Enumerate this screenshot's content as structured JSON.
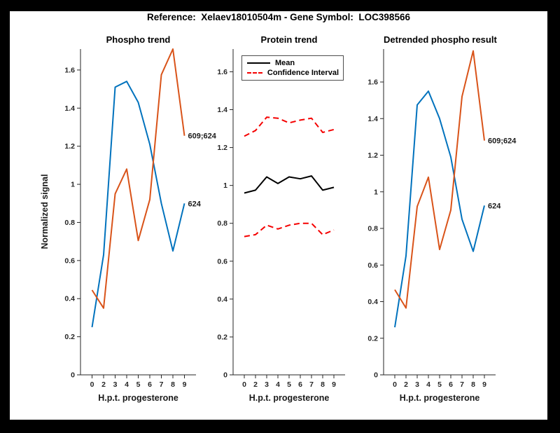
{
  "suptitle": "Reference:  Xelaev18010504m - Gene Symbol:  LOC398566",
  "ylabel": "Normalized signal",
  "colors": {
    "blue": "#0072BD",
    "orange": "#D95319",
    "red": "#F50000",
    "black": "#000000",
    "axis": "#262626",
    "tick_label": "#262626",
    "background": "#FFFFFF",
    "frame": "#000000"
  },
  "legend": {
    "items": [
      {
        "label": "Mean"
      },
      {
        "label": "Confidence Interval"
      }
    ]
  },
  "chart_data": [
    {
      "type": "line",
      "title": "Phospho trend",
      "xlabel": "H.p.t. progesterone",
      "ylabel": "Normalized signal",
      "x_ticklabels": [
        "0",
        "2",
        "3",
        "4",
        "5",
        "6",
        "7",
        "8",
        "9"
      ],
      "yticks": [
        0,
        0.2,
        0.4,
        0.6,
        0.8,
        1,
        1.2,
        1.4,
        1.6
      ],
      "ylim": [
        0,
        1.71
      ],
      "grid": false,
      "series": [
        {
          "name": "phospho-624",
          "label": "624",
          "color": "#0072BD",
          "style": "solid",
          "values": [
            0.25,
            0.63,
            1.51,
            1.54,
            1.43,
            1.21,
            0.9,
            0.65,
            0.9
          ]
        },
        {
          "name": "phospho-609-624",
          "label": "609;624",
          "color": "#D95319",
          "style": "solid",
          "values": [
            0.445,
            0.35,
            0.95,
            1.08,
            0.705,
            0.92,
            1.575,
            1.71,
            1.255
          ]
        }
      ]
    },
    {
      "type": "line",
      "title": "Protein trend",
      "xlabel": "H.p.t. progesterone",
      "x_ticklabels": [
        "0",
        "2",
        "3",
        "4",
        "5",
        "6",
        "7",
        "8",
        "9"
      ],
      "yticks": [
        0,
        0.2,
        0.4,
        0.6,
        0.8,
        1,
        1.2,
        1.4,
        1.6
      ],
      "ylim": [
        0,
        1.72
      ],
      "grid": false,
      "legend_position": "northwest",
      "series": [
        {
          "name": "ci-upper",
          "legend": "Confidence Interval",
          "label": "",
          "color": "#F50000",
          "style": "dashed",
          "values": [
            1.26,
            1.29,
            1.36,
            1.355,
            1.33,
            1.345,
            1.355,
            1.28,
            1.295
          ]
        },
        {
          "name": "ci-lower",
          "legend": "Confidence Interval",
          "label": "",
          "color": "#F50000",
          "style": "dashed",
          "values": [
            0.73,
            0.74,
            0.79,
            0.77,
            0.79,
            0.8,
            0.8,
            0.74,
            0.765
          ]
        },
        {
          "name": "mean",
          "legend": "Mean",
          "label": "",
          "color": "#000000",
          "style": "solid",
          "values": [
            0.96,
            0.975,
            1.045,
            1.01,
            1.045,
            1.035,
            1.05,
            0.975,
            0.99
          ]
        }
      ]
    },
    {
      "type": "line",
      "title": "Detrended phospho result",
      "xlabel": "H.p.t. progesterone",
      "x_ticklabels": [
        "0",
        "2",
        "3",
        "4",
        "5",
        "6",
        "7",
        "8",
        "9"
      ],
      "yticks": [
        0,
        0.2,
        0.4,
        0.6,
        0.8,
        1,
        1.2,
        1.4,
        1.6
      ],
      "ylim": [
        0,
        1.78
      ],
      "grid": false,
      "series": [
        {
          "name": "detrended-624",
          "label": "624",
          "color": "#0072BD",
          "style": "solid",
          "values": [
            0.26,
            0.65,
            1.475,
            1.55,
            1.4,
            1.19,
            0.85,
            0.675,
            0.925
          ]
        },
        {
          "name": "detrended-609-624",
          "label": "609;624",
          "color": "#D95319",
          "style": "solid",
          "values": [
            0.465,
            0.365,
            0.92,
            1.08,
            0.685,
            0.9,
            1.52,
            1.77,
            1.28
          ]
        }
      ]
    }
  ]
}
